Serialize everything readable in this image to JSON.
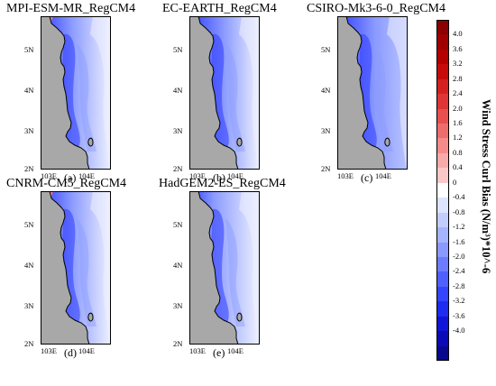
{
  "panels": [
    {
      "title": "MPI-ESM-MR_RegCM4",
      "label": "(a)",
      "variant": "a"
    },
    {
      "title": "EC-EARTH_RegCM4",
      "label": "(b)",
      "variant": "b"
    },
    {
      "title": "CSIRO-Mk3-6-0_RegCM4",
      "label": "(c)",
      "variant": "c"
    },
    {
      "title": "CNRM-CM5_RegCM4",
      "label": "(d)",
      "variant": "d"
    },
    {
      "title": "HadGEM2-ES_RegCM4",
      "label": "(e)",
      "variant": "e"
    }
  ],
  "y_ticks": [
    "5N",
    "4N",
    "3N",
    "2N"
  ],
  "x_ticks": [
    "103E",
    "104E"
  ],
  "colorbar": {
    "title": "Wind Stress Curl Bias (N/m³)*10^-6",
    "ticks": [
      "4.0",
      "3.6",
      "3.2",
      "2.8",
      "2.4",
      "2.0",
      "1.6",
      "1.2",
      "0.8",
      "0.4",
      "0",
      "-0.4",
      "-0.8",
      "-1.2",
      "-1.6",
      "-2.0",
      "-2.4",
      "-2.8",
      "-3.2",
      "-3.6",
      "-4.0"
    ],
    "colors": [
      "#8b0000",
      "#a00000",
      "#b50000",
      "#c80a0a",
      "#d52020",
      "#e03535",
      "#e85050",
      "#ef6c6c",
      "#f48a8a",
      "#f8aaaa",
      "#fbc8c8",
      "#ffffff",
      "#dde4ff",
      "#c2ccff",
      "#a6b3ff",
      "#8a99ff",
      "#6c7cff",
      "#5060ff",
      "#3545ff",
      "#1e2cf2",
      "#1015d8",
      "#0a0ab8",
      "#08088f"
    ]
  },
  "colors": {
    "land": "#a8a8a8",
    "ocean_light": "#eef1ff",
    "ocean_mid": "#8c9cff",
    "ocean_dark": "#2f3cff"
  }
}
